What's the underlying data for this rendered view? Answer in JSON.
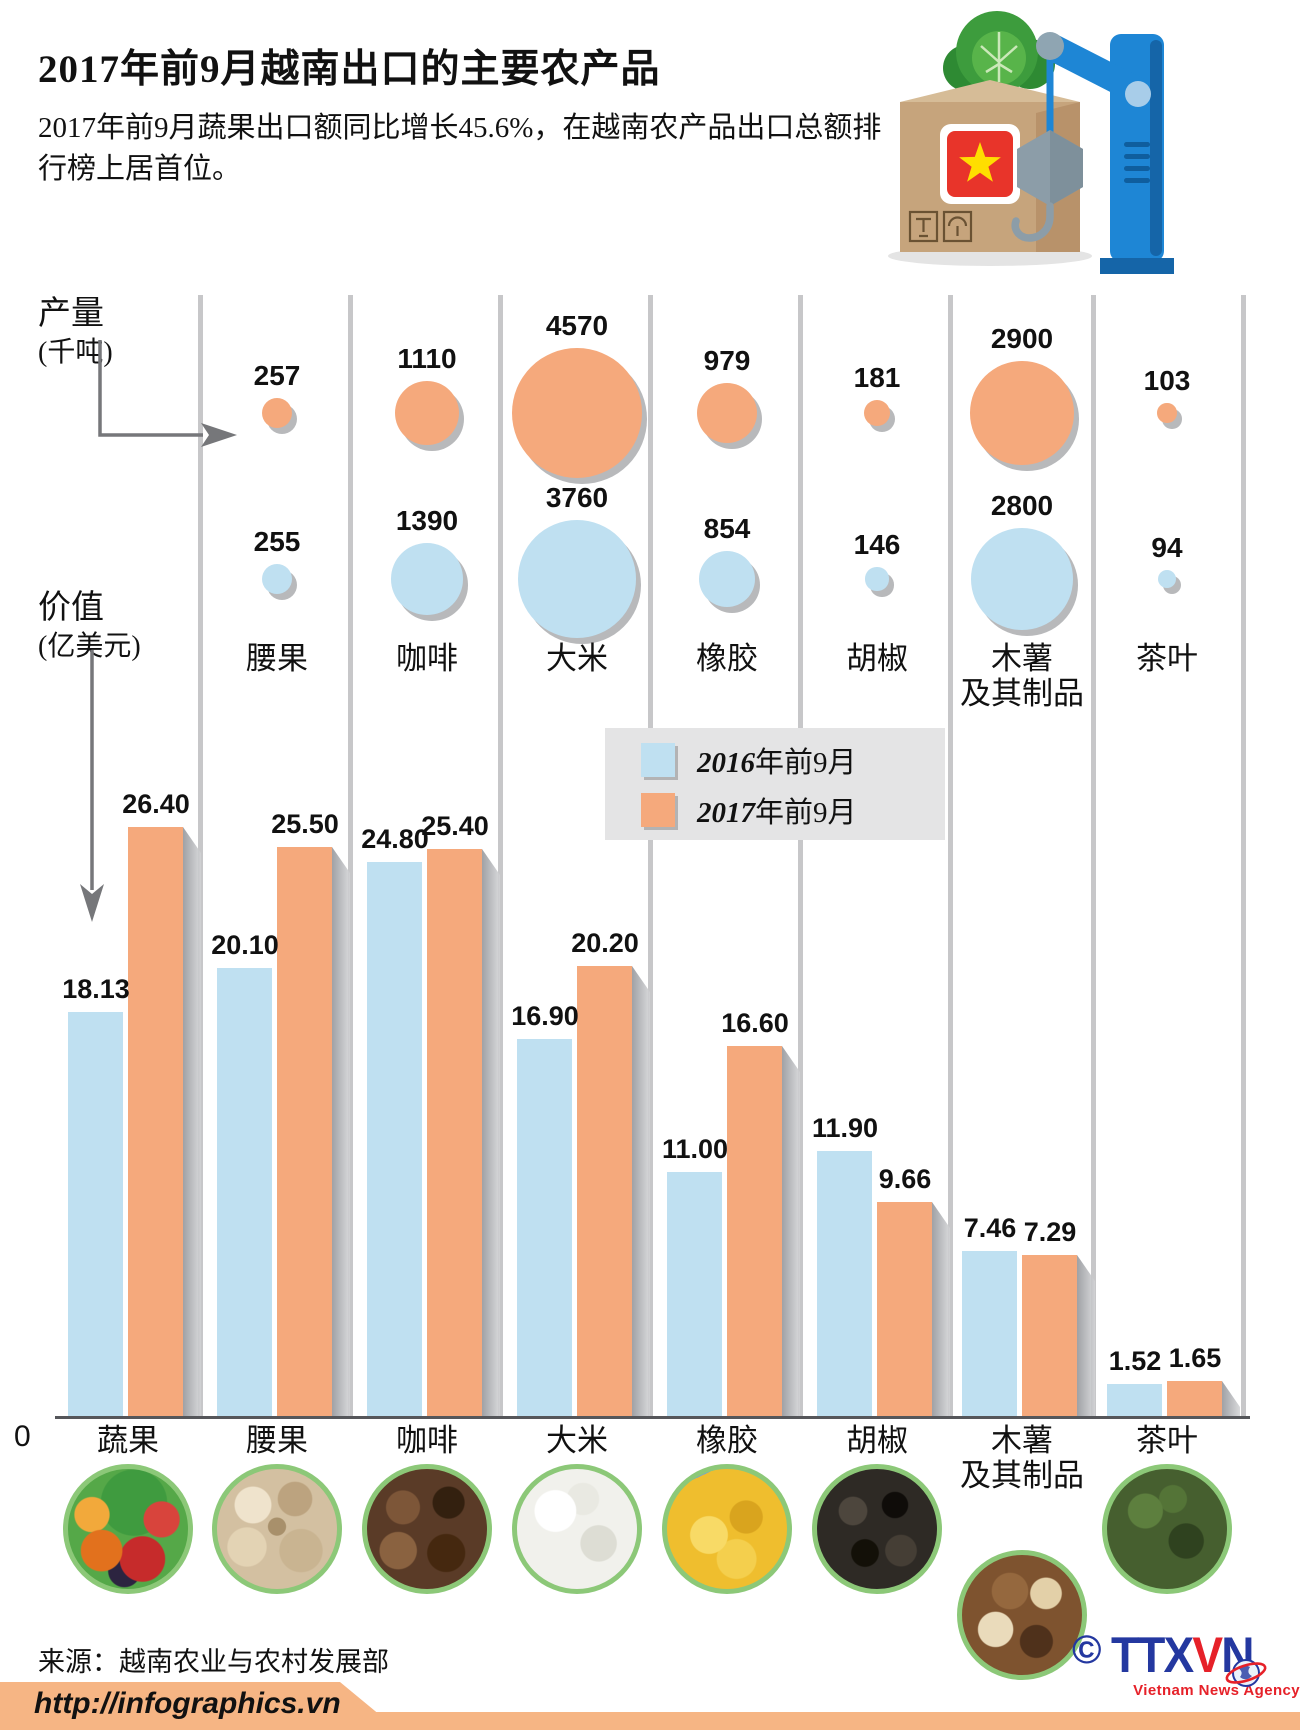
{
  "header": {
    "title": "2017年前9月越南出口的主要农产品",
    "subtitle": "2017年前9月蔬果出口额同比增长45.6%，在越南农产品出口总额排行榜上居首位。"
  },
  "icons": {
    "hero": [
      "cabbage",
      "export-box-vietnam-flag",
      "crane-hook"
    ],
    "copyright_symbol": "©"
  },
  "production_axis": {
    "line1": "产量",
    "line2": "(千吨)"
  },
  "value_axis": {
    "line1": "价值",
    "line2": "(亿美元)",
    "zero": "0"
  },
  "legend": {
    "items": [
      {
        "year": "2016",
        "suffix": "年前9月",
        "color": "#BFE0F1"
      },
      {
        "year": "2017",
        "suffix": "年前9月",
        "color": "#F5A97C"
      }
    ]
  },
  "chart_data": {
    "type": "bar",
    "title": "2017年前9月越南出口的主要农产品",
    "categories": [
      "蔬果",
      "腰果",
      "咖啡",
      "大米",
      "橡胶",
      "胡椒",
      "木薯及其制品",
      "茶叶"
    ],
    "ylabel": "价值(亿美元)",
    "ylim": [
      0,
      28
    ],
    "grid": false,
    "legend_position": "center-right-box",
    "series": [
      {
        "name": "2016年前9月",
        "color": "#BFE0F1",
        "values": [
          18.13,
          20.1,
          24.8,
          16.9,
          11.0,
          11.9,
          7.46,
          1.52
        ]
      },
      {
        "name": "2017年前9月",
        "color": "#F5A97C",
        "values": [
          26.4,
          25.5,
          25.4,
          20.2,
          16.6,
          9.66,
          7.29,
          1.65
        ]
      }
    ],
    "bubbles": {
      "title": "产量(千吨)",
      "categories": [
        "腰果",
        "咖啡",
        "大米",
        "橡胶",
        "胡椒",
        "木薯及其制品",
        "茶叶"
      ],
      "series": [
        {
          "name": "2017年前9月",
          "color": "#F5A97C",
          "values": [
            257,
            1110,
            4570,
            979,
            181,
            2900,
            103
          ]
        },
        {
          "name": "2016年前9月",
          "color": "#BFE0F1",
          "values": [
            255,
            1390,
            3760,
            854,
            146,
            2800,
            94
          ]
        }
      ]
    }
  },
  "footer": {
    "source": "来源：越南农业与农村发展部",
    "url": "http://infographics.vn",
    "agency_abbr": {
      "t1": "T",
      "t2": "T",
      "x": "X",
      "v": "V",
      "n": "N"
    },
    "agency_name": "Vietnam News Agency"
  },
  "colors": {
    "orange_2017": "#F5A97C",
    "blue_2016": "#BFE0F1",
    "divider": "#C7C7C9",
    "legend_bg": "#E4E4E5",
    "footer_band": "#F6B584",
    "photo_ring": "#8CC878",
    "logo_blue": "#2438A0",
    "logo_red": "#E62129"
  }
}
